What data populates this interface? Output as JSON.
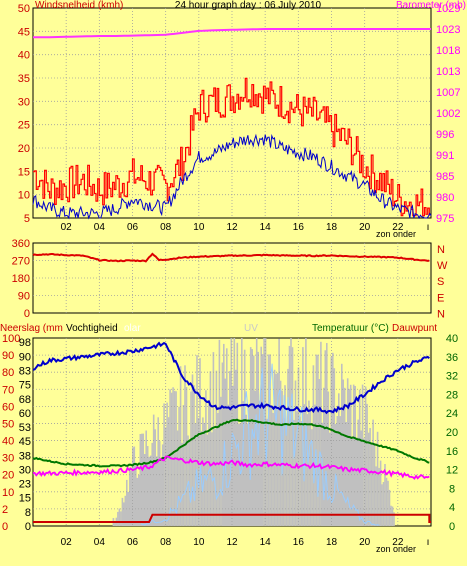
{
  "title": "24 hour graph day : 06 July 2010",
  "colors": {
    "background": "#ffff99",
    "plot_bg": "#ffff99",
    "frame": "#000000",
    "wind": "#cc0000",
    "wind_gust": "#ff0000",
    "wind_avg": "#0000cc",
    "barometer": "#ff33ff",
    "direction": "#dd0000",
    "rain": "#cc0000",
    "humidity": "#0000cc",
    "solar": "#c0c0c0",
    "uv": "#99ccff",
    "temperature": "#007700",
    "dewpoint": "#ff00ff",
    "label_red": "#cc0000",
    "label_magenta": "#ff00ff",
    "label_green": "#006600",
    "label_white": "#ffffff",
    "label_light": "#c8c8c8"
  },
  "x_ticks": [
    "02",
    "04",
    "06",
    "08",
    "10",
    "12",
    "14",
    "16",
    "18",
    "20",
    "22"
  ],
  "sun_label": "zon onder",
  "chart_data": [
    {
      "type": "line",
      "name": "wind",
      "ylabel_left": "Windsnelheid (kmh)",
      "ylabel_right": "Barometer (mb)",
      "ylim": [
        5,
        50
      ],
      "left_ticks": [
        "5",
        "10",
        "15",
        "20",
        "25",
        "30",
        "35",
        "40",
        "45",
        "50"
      ],
      "right_ticks": [
        "975",
        "980",
        "985",
        "991",
        "996",
        "1002",
        "1007",
        "1013",
        "1018",
        "1023",
        "1029"
      ],
      "hours": [
        0,
        1,
        2,
        3,
        4,
        5,
        6,
        7,
        8,
        9,
        10,
        11,
        12,
        13,
        14,
        15,
        16,
        17,
        18,
        19,
        20,
        21,
        22,
        23,
        24
      ],
      "series": [
        {
          "key": "gust",
          "values": [
            15,
            11,
            12,
            13,
            11,
            12,
            14,
            13,
            12,
            17,
            29,
            30,
            31,
            33,
            31,
            30,
            28,
            27,
            24,
            21,
            16,
            13,
            9,
            8,
            8
          ]
        },
        {
          "key": "avg",
          "values": [
            9,
            7,
            6,
            6,
            6,
            7,
            9,
            8,
            7,
            13,
            18,
            19,
            21,
            22,
            22,
            20,
            19,
            18,
            16,
            14,
            12,
            9,
            7,
            6,
            6
          ]
        },
        {
          "key": "baro",
          "values": [
            1021.5,
            1021.5,
            1021.6,
            1021.7,
            1021.8,
            1021.8,
            1021.9,
            1022.0,
            1022.1,
            1022.6,
            1023.1,
            1023.3,
            1023.4,
            1023.5,
            1023.6,
            1023.6,
            1023.6,
            1023.6,
            1023.6,
            1023.6,
            1023.6,
            1023.6,
            1023.6,
            1023.6,
            1023.6
          ]
        }
      ]
    },
    {
      "type": "line",
      "name": "direction",
      "ylim": [
        0,
        360
      ],
      "left_ticks": [
        "0",
        "90",
        "180",
        "270",
        "360"
      ],
      "right_labels": [
        "N",
        "W",
        "S",
        "E",
        "N"
      ],
      "hours": [
        0,
        1,
        2,
        3,
        4,
        5,
        6,
        6.8,
        7.2,
        7.6,
        8,
        9,
        10,
        11,
        12,
        13,
        14,
        15,
        16,
        17,
        18,
        19,
        20,
        21,
        22,
        23,
        24
      ],
      "values": [
        300,
        302,
        298,
        295,
        272,
        268,
        270,
        268,
        305,
        272,
        275,
        285,
        290,
        292,
        295,
        296,
        298,
        296,
        295,
        294,
        296,
        292,
        290,
        288,
        285,
        275,
        268
      ]
    },
    {
      "type": "line",
      "name": "rain_humidity_temperature",
      "labels": {
        "rain": "Neerslag (mm",
        "humidity": "Vochtigheid",
        "solar": "olar",
        "uv": "UV",
        "temperature": "Temperatuur (°C)",
        "dewpoint": "Dauwpunt"
      },
      "left_ticks": [
        "0",
        "2",
        "10",
        "20",
        "30",
        "40",
        "50",
        "60",
        "70",
        "80",
        "90",
        "100"
      ],
      "percent_ticks": [
        "0",
        "8",
        "15",
        "23",
        "30",
        "38",
        "45",
        "53",
        "60",
        "68",
        "75",
        "83",
        "90",
        "98"
      ],
      "temp_ticks": [
        "0",
        "4",
        "8",
        "12",
        "16",
        "20",
        "24",
        "28",
        "32",
        "36",
        "40"
      ],
      "hours": [
        0,
        1,
        2,
        3,
        4,
        5,
        6,
        7,
        8,
        9,
        10,
        11,
        12,
        13,
        14,
        15,
        16,
        17,
        18,
        19,
        20,
        21,
        22,
        23,
        24
      ],
      "series": [
        {
          "key": "humidity",
          "unit": "%",
          "values": [
            84,
            88,
            89,
            90,
            91,
            92,
            93,
            95,
            97,
            80,
            70,
            63,
            63,
            64,
            64,
            63,
            62,
            62,
            61,
            64,
            70,
            77,
            83,
            87,
            90
          ]
        },
        {
          "key": "temperature",
          "unit": "°C",
          "values": [
            14.5,
            13.8,
            13.2,
            13.0,
            12.8,
            12.8,
            13.0,
            13.5,
            14.5,
            17,
            19.5,
            21,
            22.5,
            22.5,
            22,
            21.5,
            21.8,
            21.5,
            20.5,
            19,
            18,
            17,
            16,
            14.5,
            13.5
          ]
        },
        {
          "key": "dewpoint",
          "unit": "°C",
          "values": [
            11.2,
            11.2,
            11.3,
            11.4,
            11.5,
            11.7,
            12.0,
            12.5,
            14.5,
            14.0,
            13.5,
            13.2,
            13.5,
            13.0,
            13.2,
            13.0,
            12.8,
            12.8,
            12.5,
            12.0,
            11.8,
            11.5,
            11.0,
            10.5,
            10.2
          ]
        },
        {
          "key": "rain",
          "unit": "mm",
          "values": [
            0,
            0,
            0,
            0,
            0,
            0,
            0,
            1.2,
            1.2,
            1.2,
            1.2,
            1.2,
            1.2,
            1.2,
            1.2,
            1.2,
            1.2,
            1.2,
            1.2,
            1.2,
            1.2,
            1.2,
            1.2,
            1.2,
            0
          ]
        },
        {
          "key": "solar",
          "unit": "%",
          "values": [
            0,
            0,
            0,
            0,
            0,
            5,
            40,
            55,
            65,
            80,
            85,
            90,
            95,
            98,
            95,
            96,
            96,
            92,
            88,
            80,
            70,
            40,
            0,
            0,
            0
          ]
        },
        {
          "key": "uv",
          "unit": "%",
          "values": [
            0,
            0,
            0,
            0,
            0,
            0,
            0,
            2,
            5,
            15,
            25,
            30,
            45,
            60,
            70,
            65,
            55,
            40,
            25,
            12,
            3,
            0,
            0,
            0,
            0
          ]
        }
      ]
    }
  ]
}
